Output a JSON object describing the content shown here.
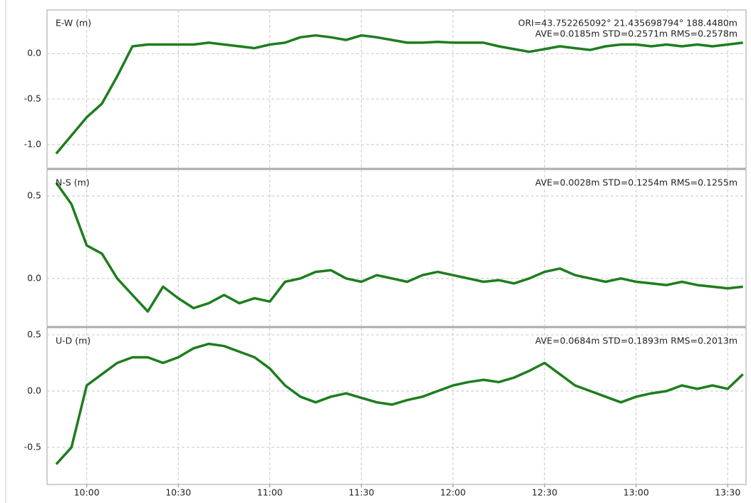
{
  "chart_data": [
    {
      "type": "line",
      "title": "E-W (m)",
      "annotations": [
        "ORI=43.752265092° 21.435698794° 188.4480m",
        "AVE=0.0185m STD=0.2571m RMS=0.2578m"
      ],
      "x": [
        590,
        595,
        600,
        605,
        610,
        615,
        620,
        625,
        630,
        635,
        640,
        645,
        650,
        655,
        660,
        665,
        670,
        675,
        680,
        685,
        690,
        695,
        700,
        705,
        710,
        715,
        720,
        725,
        730,
        735,
        740,
        745,
        750,
        755,
        760,
        765,
        770,
        775,
        780,
        785,
        790,
        795,
        800,
        805,
        810,
        815
      ],
      "xlim": [
        587,
        816
      ],
      "series": [
        {
          "name": "E-W",
          "color": "#1e7d1e",
          "values": [
            -1.1,
            -0.9,
            -0.7,
            -0.55,
            -0.25,
            0.08,
            0.1,
            0.1,
            0.1,
            0.1,
            0.12,
            0.1,
            0.08,
            0.06,
            0.1,
            0.12,
            0.18,
            0.2,
            0.18,
            0.15,
            0.2,
            0.18,
            0.15,
            0.12,
            0.12,
            0.13,
            0.12,
            0.12,
            0.12,
            0.08,
            0.05,
            0.02,
            0.05,
            0.08,
            0.06,
            0.04,
            0.08,
            0.1,
            0.1,
            0.08,
            0.1,
            0.08,
            0.1,
            0.08,
            0.1,
            0.12
          ]
        }
      ],
      "ylim": [
        -1.26,
        0.48
      ],
      "yticks": [
        {
          "value": 0,
          "label": "0.0"
        },
        -0.5,
        {
          "value": -1,
          "label": "-1.0"
        }
      ],
      "grid": true
    },
    {
      "type": "line",
      "title": "N-S (m)",
      "annotations": [
        "AVE=0.0028m STD=0.1254m RMS=0.1255m"
      ],
      "x": [
        590,
        595,
        600,
        605,
        610,
        615,
        620,
        625,
        630,
        635,
        640,
        645,
        650,
        655,
        660,
        665,
        670,
        675,
        680,
        685,
        690,
        695,
        700,
        705,
        710,
        715,
        720,
        725,
        730,
        735,
        740,
        745,
        750,
        755,
        760,
        765,
        770,
        775,
        780,
        785,
        790,
        795,
        800,
        805,
        810,
        815
      ],
      "xlim": [
        587,
        816
      ],
      "series": [
        {
          "name": "N-S",
          "color": "#1e7d1e",
          "values": [
            0.58,
            0.45,
            0.2,
            0.15,
            0.0,
            -0.1,
            -0.2,
            -0.05,
            -0.12,
            -0.18,
            -0.15,
            -0.1,
            -0.15,
            -0.12,
            -0.14,
            -0.02,
            0.0,
            0.04,
            0.05,
            0.0,
            -0.02,
            0.02,
            0.0,
            -0.02,
            0.02,
            0.04,
            0.02,
            0.0,
            -0.02,
            -0.01,
            -0.03,
            0.0,
            0.04,
            0.06,
            0.02,
            0.0,
            -0.02,
            0.0,
            -0.02,
            -0.03,
            -0.04,
            -0.02,
            -0.04,
            -0.05,
            -0.06,
            -0.05
          ]
        }
      ],
      "ylim": [
        -0.29,
        0.66
      ],
      "yticks": [
        0.5,
        {
          "value": 0,
          "label": "0.0"
        }
      ],
      "grid": true
    },
    {
      "type": "line",
      "title": "U-D (m)",
      "annotations": [
        "AVE=0.0684m STD=0.1893m RMS=0.2013m"
      ],
      "x": [
        590,
        595,
        600,
        605,
        610,
        615,
        620,
        625,
        630,
        635,
        640,
        645,
        650,
        655,
        660,
        665,
        670,
        675,
        680,
        685,
        690,
        695,
        700,
        705,
        710,
        715,
        720,
        725,
        730,
        735,
        740,
        745,
        750,
        755,
        760,
        765,
        770,
        775,
        780,
        785,
        790,
        795,
        800,
        805,
        810,
        815
      ],
      "xlim": [
        587,
        816
      ],
      "xticks": [
        {
          "value": 600,
          "label": "10:00"
        },
        {
          "value": 630,
          "label": "10:30"
        },
        {
          "value": 660,
          "label": "11:00"
        },
        {
          "value": 690,
          "label": "11:30"
        },
        {
          "value": 720,
          "label": "12:00"
        },
        {
          "value": 750,
          "label": "12:30"
        },
        {
          "value": 780,
          "label": "13:00"
        },
        {
          "value": 810,
          "label": "13:30"
        }
      ],
      "series": [
        {
          "name": "U-D",
          "color": "#1e7d1e",
          "values": [
            -0.65,
            -0.5,
            0.05,
            0.15,
            0.25,
            0.3,
            0.3,
            0.25,
            0.3,
            0.38,
            0.42,
            0.4,
            0.35,
            0.3,
            0.2,
            0.05,
            -0.05,
            -0.1,
            -0.05,
            -0.02,
            -0.06,
            -0.1,
            -0.12,
            -0.08,
            -0.05,
            0.0,
            0.05,
            0.08,
            0.1,
            0.08,
            0.12,
            0.18,
            0.25,
            0.15,
            0.05,
            0.0,
            -0.05,
            -0.1,
            -0.05,
            -0.02,
            0.0,
            0.05,
            0.02,
            0.05,
            0.02,
            0.15
          ]
        }
      ],
      "ylim": [
        -0.83,
        0.563
      ],
      "yticks": [
        0.5,
        {
          "value": 0,
          "label": "0.0"
        },
        -0.5
      ],
      "grid": true
    }
  ]
}
